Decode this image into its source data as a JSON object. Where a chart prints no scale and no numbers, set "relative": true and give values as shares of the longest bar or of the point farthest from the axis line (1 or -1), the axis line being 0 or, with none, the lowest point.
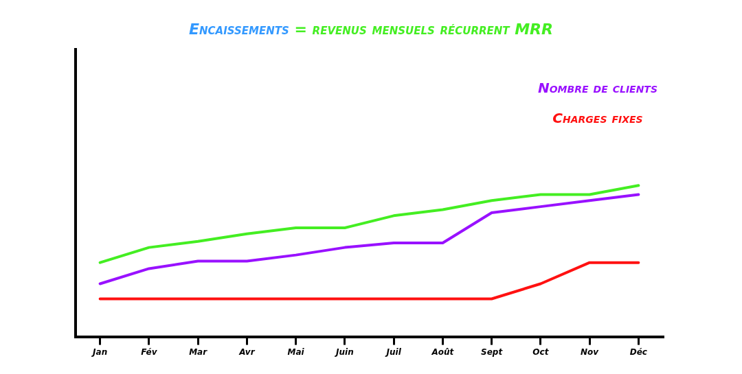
{
  "chart_data": {
    "type": "line",
    "title": "Encaissements = revenus mensuels récurrent MRR",
    "relative": true,
    "legend": "top right",
    "marker": "none",
    "grid": false,
    "categories": [
      "Jan",
      "Fév",
      "Mar",
      "Avr",
      "Mai",
      "Juin",
      "Juil",
      "Août",
      "Sept",
      "Oct",
      "Nov",
      "Déc"
    ],
    "series": [
      {
        "color": "#44ee22",
        "values": [
          0.49,
          0.59,
          0.63,
          0.68,
          0.72,
          0.72,
          0.8,
          0.84,
          0.9,
          0.94,
          0.94,
          1
        ]
      },
      {
        "name": "Nombre de clients",
        "color": "#9911ff",
        "values": [
          0.35,
          0.45,
          0.5,
          0.5,
          0.54,
          0.59,
          0.62,
          0.62,
          0.82,
          0.86,
          0.9,
          0.94
        ]
      },
      {
        "name": "Charges fixes",
        "color": "#ff1111",
        "values": [
          0.25,
          0.25,
          0.25,
          0.25,
          0.25,
          0.25,
          0.25,
          0.25,
          0.25,
          0.35,
          0.49,
          0.49
        ]
      }
    ]
  }
}
